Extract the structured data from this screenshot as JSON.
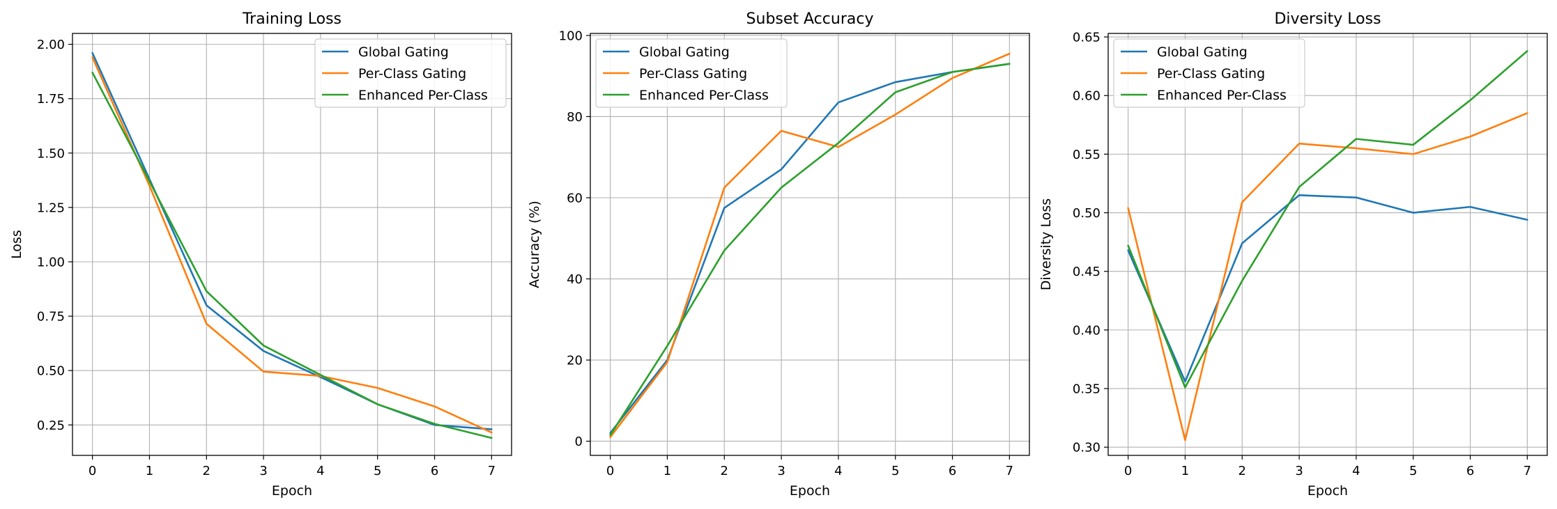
{
  "colors": {
    "Global Gating": "#1f77b4",
    "Per-Class Gating": "#ff7f0e",
    "Enhanced Per-Class": "#2ca02c"
  },
  "chart_data": [
    {
      "type": "line",
      "title": "Training Loss",
      "xlabel": "Epoch",
      "ylabel": "Loss",
      "x": [
        0,
        1,
        2,
        3,
        4,
        5,
        6,
        7
      ],
      "xlim": [
        -0.35,
        7.35
      ],
      "ylim": [
        0.11,
        2.05
      ],
      "yticks": [
        0.25,
        0.5,
        0.75,
        1.0,
        1.25,
        1.5,
        1.75,
        2.0
      ],
      "ytick_labels": [
        "0.25",
        "0.50",
        "0.75",
        "1.00",
        "1.25",
        "1.50",
        "1.75",
        "2.00"
      ],
      "grid": true,
      "legend": "top-right",
      "series": [
        {
          "name": "Global Gating",
          "values": [
            1.96,
            1.38,
            0.8,
            0.59,
            0.47,
            0.345,
            0.25,
            0.23
          ]
        },
        {
          "name": "Per-Class Gating",
          "values": [
            1.94,
            1.35,
            0.715,
            0.495,
            0.475,
            0.42,
            0.335,
            0.215
          ]
        },
        {
          "name": "Enhanced Per-Class",
          "values": [
            1.87,
            1.37,
            0.865,
            0.615,
            0.48,
            0.345,
            0.255,
            0.19
          ]
        }
      ]
    },
    {
      "type": "line",
      "title": "Subset Accuracy",
      "xlabel": "Epoch",
      "ylabel": "Accuracy (%)",
      "x": [
        0,
        1,
        2,
        3,
        4,
        5,
        6,
        7
      ],
      "xlim": [
        -0.35,
        7.35
      ],
      "ylim": [
        -3.5,
        100.5
      ],
      "yticks": [
        0,
        20,
        40,
        60,
        80,
        100
      ],
      "ytick_labels": [
        "0",
        "20",
        "40",
        "60",
        "80",
        "100"
      ],
      "grid": true,
      "legend": "top-left",
      "series": [
        {
          "name": "Global Gating",
          "values": [
            2.0,
            20.0,
            57.5,
            67.0,
            83.5,
            88.5,
            91.0,
            93.0
          ]
        },
        {
          "name": "Per-Class Gating",
          "values": [
            1.0,
            19.5,
            62.5,
            76.5,
            72.5,
            80.5,
            89.5,
            95.5
          ]
        },
        {
          "name": "Enhanced Per-Class",
          "values": [
            1.5,
            23.5,
            47.0,
            62.5,
            73.5,
            86.0,
            91.0,
            93.0
          ]
        }
      ]
    },
    {
      "type": "line",
      "title": "Diversity Loss",
      "xlabel": "Epoch",
      "ylabel": "Diversity Loss",
      "x": [
        0,
        1,
        2,
        3,
        4,
        5,
        6,
        7
      ],
      "xlim": [
        -0.35,
        7.35
      ],
      "ylim": [
        0.293,
        0.653
      ],
      "yticks": [
        0.3,
        0.35,
        0.4,
        0.45,
        0.5,
        0.55,
        0.6,
        0.65
      ],
      "ytick_labels": [
        "0.30",
        "0.35",
        "0.40",
        "0.45",
        "0.50",
        "0.55",
        "0.60",
        "0.65"
      ],
      "grid": true,
      "legend": "top-left",
      "series": [
        {
          "name": "Global Gating",
          "values": [
            0.468,
            0.356,
            0.474,
            0.515,
            0.513,
            0.5,
            0.505,
            0.494
          ]
        },
        {
          "name": "Per-Class Gating",
          "values": [
            0.504,
            0.306,
            0.509,
            0.559,
            0.555,
            0.55,
            0.565,
            0.585
          ]
        },
        {
          "name": "Enhanced Per-Class",
          "values": [
            0.472,
            0.351,
            0.442,
            0.522,
            0.563,
            0.558,
            0.596,
            0.638
          ]
        }
      ]
    }
  ]
}
